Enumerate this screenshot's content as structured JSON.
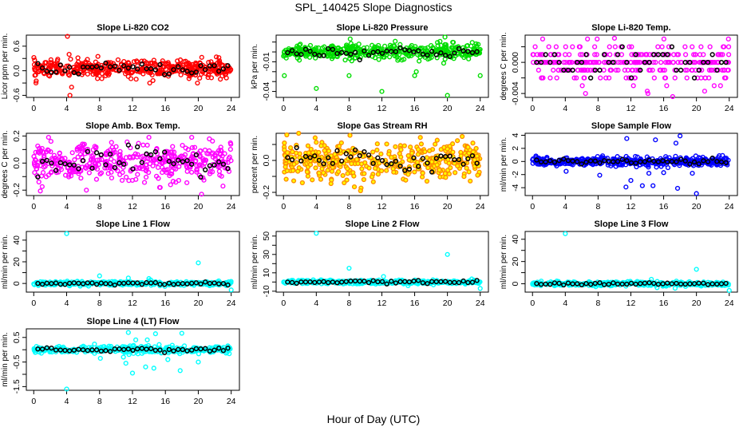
{
  "chart_data": {
    "type": "scatter",
    "title": "SPL_140425  Slope Diagnostics",
    "xlabel": "Hour of Day (UTC)",
    "xlim": [
      0,
      24
    ],
    "xticks": [
      0,
      4,
      8,
      12,
      16,
      20,
      24
    ],
    "reference_color": "#000000",
    "panels": [
      {
        "title": "Slope Li-820 CO2",
        "ylabel": "Licor ppm per min.",
        "color": "#ff0000",
        "fill": "none",
        "ylim": [
          -0.65,
          0.87
        ],
        "yticks": [
          -0.6,
          -0.3,
          0.0,
          0.3,
          0.6
        ],
        "ylabels": [
          "-0.6",
          "0.0",
          "0.6"
        ],
        "cloud": {
          "center": 0.05,
          "sd": 0.1,
          "n": 420,
          "step": 0
        },
        "outliers": [
          [
            4.1,
            0.84
          ],
          [
            4.4,
            -0.6
          ],
          [
            4.3,
            0.4
          ],
          [
            4.6,
            -0.4
          ],
          [
            14.1,
            -0.3
          ],
          [
            19.9,
            -0.3
          ],
          [
            0.3,
            -0.25
          ],
          [
            22.5,
            0.32
          ],
          [
            7.8,
            0.35
          ]
        ]
      },
      {
        "title": "Slope Li-820 Pressure",
        "ylabel": "kPa per min.",
        "color": "#00dd00",
        "fill": "none",
        "ylim": [
          -0.046,
          0.017
        ],
        "yticks": [
          -0.04,
          -0.03,
          -0.02,
          -0.01,
          0.0,
          0.01
        ],
        "ylabels": [
          "-0.04",
          "-0.01"
        ],
        "cloud": {
          "center": 0.0,
          "sd": 0.004,
          "n": 420,
          "step": 0
        },
        "outliers": [
          [
            0.1,
            -0.024
          ],
          [
            4.0,
            -0.037
          ],
          [
            12.0,
            -0.04
          ],
          [
            20.0,
            -0.044
          ],
          [
            24.0,
            -0.024
          ],
          [
            8.0,
            -0.024
          ],
          [
            16.0,
            -0.024
          ],
          [
            16.2,
            -0.02
          ],
          [
            19.7,
            0.015
          ]
        ]
      },
      {
        "title": "Slope Li-820 Temp.",
        "ylabel": "degrees C per min.",
        "color": "#ff00ff",
        "fill": "none",
        "ylim": [
          -0.0045,
          0.0035
        ],
        "yticks": [
          -0.004,
          -0.002,
          0.0,
          0.002
        ],
        "ylabels": [
          "-0.004",
          "0.000"
        ],
        "cloud": {
          "center": 0.0,
          "sd": 0.0011,
          "n": 320,
          "step": 0.001
        },
        "outliers": [
          [
            17.1,
            -0.0044
          ],
          [
            10.0,
            0.0031
          ],
          [
            14.0,
            -0.0037
          ],
          [
            21.0,
            -0.0037
          ]
        ]
      },
      {
        "title": "Slope Amb. Box Temp.",
        "ylabel": "degrees C per min.",
        "color": "#ff00ff",
        "fill": "none",
        "ylim": [
          -0.24,
          0.22
        ],
        "yticks": [
          -0.2,
          -0.1,
          0.0,
          0.1,
          0.2
        ],
        "ylabels": [
          "-0.2",
          "0.0",
          "0.2"
        ],
        "cloud": {
          "center": 0.01,
          "sd": 0.065,
          "n": 420,
          "step": 0
        },
        "outliers": [
          [
            1.8,
            0.19
          ],
          [
            14.0,
            0.19
          ],
          [
            19.2,
            0.19
          ],
          [
            20.4,
            -0.23
          ],
          [
            6.4,
            -0.2
          ],
          [
            15.3,
            -0.18
          ],
          [
            23.0,
            -0.17
          ]
        ]
      },
      {
        "title": "Slope Gas Stream RH",
        "ylabel": "percent per min.",
        "color": "#ff8c00",
        "fill": "#ffff00",
        "ylim": [
          -0.22,
          0.17
        ],
        "yticks": [
          -0.2,
          -0.1,
          0.0,
          0.1
        ],
        "ylabels": [
          "-0.2",
          "0.0"
        ],
        "cloud": {
          "center": 0.0,
          "sd": 0.055,
          "n": 420,
          "step": 0
        },
        "outliers": [
          [
            0.4,
            0.16
          ],
          [
            9.4,
            -0.19
          ],
          [
            21.8,
            0.15
          ],
          [
            2.3,
            -0.14
          ],
          [
            9.8,
            -0.12
          ],
          [
            17.5,
            -0.13
          ]
        ]
      },
      {
        "title": "Slope Sample Flow",
        "ylabel": "ml/min per min.",
        "color": "#0000ff",
        "fill": "none",
        "ylim": [
          -5.2,
          4.3
        ],
        "yticks": [
          -4,
          -2,
          0,
          2,
          4
        ],
        "ylabels": [
          "-4",
          "-2",
          "0",
          "2",
          "4"
        ],
        "cloud": {
          "center": 0.0,
          "sd": 0.35,
          "n": 420,
          "step": 0
        },
        "outliers": [
          [
            20.0,
            -4.9
          ],
          [
            11.4,
            -3.9
          ],
          [
            17.7,
            -4.1
          ],
          [
            18.0,
            3.9
          ],
          [
            11.5,
            3.5
          ],
          [
            15.0,
            3.3
          ],
          [
            17.5,
            2.8
          ],
          [
            13.4,
            -3.7
          ],
          [
            14.7,
            -3.7
          ],
          [
            4.1,
            -1.5
          ],
          [
            8.2,
            -2.1
          ],
          [
            12.0,
            -2.9
          ],
          [
            14.2,
            -1.8
          ],
          [
            16.0,
            -1.7
          ],
          [
            19.5,
            -1.8
          ]
        ]
      },
      {
        "title": "Slope Line 1 Flow",
        "ylabel": "ml/min per min.",
        "color": "#00ffff",
        "fill": "none",
        "ylim": [
          -8,
          48
        ],
        "yticks": [
          0,
          10,
          20,
          30,
          40
        ],
        "ylabels": [
          "0",
          "20",
          "40"
        ],
        "cloud": {
          "center": 0.0,
          "sd": 0.9,
          "n": 380,
          "step": 0
        },
        "outliers": [
          [
            4.0,
            46
          ],
          [
            8.0,
            7
          ],
          [
            20.0,
            19
          ],
          [
            24.0,
            -6
          ],
          [
            11.5,
            5
          ],
          [
            14.0,
            4.5
          ]
        ]
      },
      {
        "title": "Slope Line 2 Flow",
        "ylabel": "ml/min per min.",
        "color": "#00ffff",
        "fill": "none",
        "ylim": [
          -11,
          55
        ],
        "yticks": [
          -10,
          0,
          10,
          20,
          30,
          40,
          50
        ],
        "ylabels": [
          "-10",
          "10",
          "30",
          "50"
        ],
        "cloud": {
          "center": 0.0,
          "sd": 1.0,
          "n": 380,
          "step": 0
        },
        "outliers": [
          [
            4.0,
            53
          ],
          [
            8.0,
            15
          ],
          [
            20.0,
            30
          ],
          [
            24.0,
            -7
          ],
          [
            12.2,
            6
          ],
          [
            15.2,
            -4
          ]
        ]
      },
      {
        "title": "Slope Line 3 Flow",
        "ylabel": "ml/min per min.",
        "color": "#00ffff",
        "fill": "none",
        "ylim": [
          -7.5,
          47
        ],
        "yticks": [
          0,
          10,
          20,
          30,
          40
        ],
        "ylabels": [
          "0",
          "20",
          "40"
        ],
        "cloud": {
          "center": 0.0,
          "sd": 0.9,
          "n": 380,
          "step": 0
        },
        "outliers": [
          [
            4.0,
            45
          ],
          [
            20.0,
            13
          ],
          [
            24.0,
            -6
          ],
          [
            14.5,
            4
          ],
          [
            17.4,
            -4
          ],
          [
            15.2,
            -3.5
          ]
        ]
      },
      {
        "title": "Slope Line 4 (LT) Flow",
        "ylabel": "ml/min per min.",
        "color": "#00ffff",
        "fill": "none",
        "ylim": [
          -1.65,
          0.85
        ],
        "yticks": [
          -1.5,
          -1.0,
          -0.5,
          0.0,
          0.5
        ],
        "ylabels": [
          "-1.5",
          "-0.5",
          "0.5"
        ],
        "cloud": {
          "center": 0.0,
          "sd": 0.07,
          "n": 400,
          "step": 0
        },
        "outliers": [
          [
            4.0,
            -1.6
          ],
          [
            11.5,
            0.7
          ],
          [
            12.0,
            -0.95
          ],
          [
            17.8,
            -0.85
          ],
          [
            20.0,
            -0.5
          ],
          [
            18.0,
            0.67
          ],
          [
            14.8,
            0.65
          ],
          [
            11.2,
            -0.55
          ],
          [
            13.6,
            -0.7
          ],
          [
            14.6,
            -0.75
          ],
          [
            12.4,
            0.4
          ],
          [
            13.8,
            0.4
          ],
          [
            8.1,
            -0.35
          ],
          [
            10.9,
            -0.3
          ],
          [
            16.3,
            -0.4
          ]
        ]
      }
    ]
  }
}
